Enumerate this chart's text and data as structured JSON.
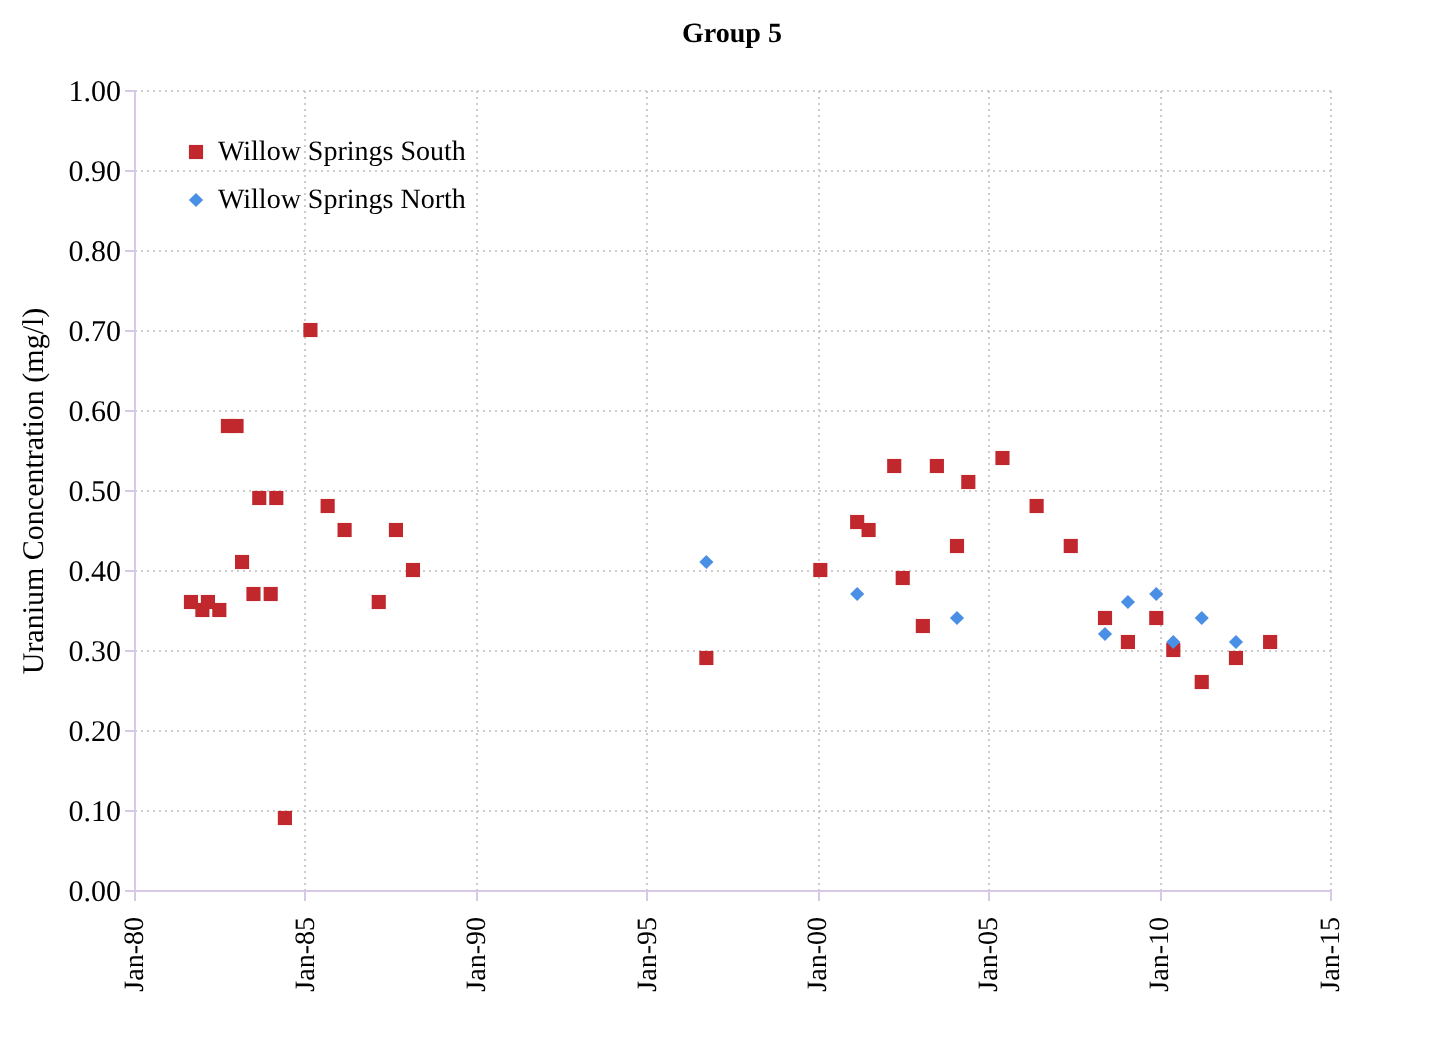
{
  "chart_data": {
    "type": "scatter",
    "title": "Group 5",
    "ylabel": "Uranium Concentration (mg/l)",
    "xlim": [
      "1980-01-01",
      "2015-01-01"
    ],
    "xticks": [
      {
        "value": "1980-01-01",
        "label": "Jan-80"
      },
      {
        "value": "1985-01-01",
        "label": "Jan-85"
      },
      {
        "value": "1990-01-01",
        "label": "Jan-90"
      },
      {
        "value": "1995-01-01",
        "label": "Jan-95"
      },
      {
        "value": "2000-01-01",
        "label": "Jan-00"
      },
      {
        "value": "2005-01-01",
        "label": "Jan-05"
      },
      {
        "value": "2010-01-01",
        "label": "Jan-10"
      },
      {
        "value": "2015-01-01",
        "label": "Jan-15"
      }
    ],
    "ylim": [
      0,
      1
    ],
    "yticks": [
      {
        "value": 0,
        "label": "0.00"
      },
      {
        "value": 0.1,
        "label": "0.10"
      },
      {
        "value": 0.2,
        "label": "0.20"
      },
      {
        "value": 0.3,
        "label": "0.30"
      },
      {
        "value": 0.4,
        "label": "0.40"
      },
      {
        "value": 0.5,
        "label": "0.50"
      },
      {
        "value": 0.6,
        "label": "0.60"
      },
      {
        "value": 0.7,
        "label": "0.70"
      },
      {
        "value": 0.8,
        "label": "0.80"
      },
      {
        "value": 0.9,
        "label": "0.90"
      },
      {
        "value": 1,
        "label": "1.00"
      }
    ],
    "grid": true,
    "legend": "top left",
    "series": [
      {
        "name": "Willow Springs South",
        "color": "#c0282d",
        "marker": "square",
        "x": [
          "1981-09",
          "1982-01",
          "1982-03",
          "1982-07",
          "1982-10",
          "1983-01",
          "1983-03",
          "1983-07",
          "1983-09",
          "1984-01",
          "1984-03",
          "1984-06",
          "1985-03",
          "1985-09",
          "1986-03",
          "1987-03",
          "1987-09",
          "1988-03",
          "1996-10",
          "2000-02",
          "2001-03",
          "2001-07",
          "2002-04",
          "2002-07",
          "2003-02",
          "2003-07",
          "2004-02",
          "2004-06",
          "2005-06",
          "2006-06",
          "2007-06",
          "2008-06",
          "2009-02",
          "2009-12",
          "2010-06",
          "2011-04",
          "2012-04",
          "2013-04"
        ],
        "values": [
          0.36,
          0.35,
          0.36,
          0.35,
          0.58,
          0.58,
          0.41,
          0.37,
          0.49,
          0.37,
          0.49,
          0.09,
          0.7,
          0.48,
          0.45,
          0.36,
          0.45,
          0.4,
          0.29,
          0.4,
          0.46,
          0.45,
          0.53,
          0.39,
          0.33,
          0.53,
          0.43,
          0.51,
          0.54,
          0.48,
          0.43,
          0.34,
          0.31,
          0.34,
          0.3,
          0.26,
          0.29,
          0.31
        ]
      },
      {
        "name": "Willow Springs North",
        "color": "#4a8fe6",
        "marker": "diamond",
        "x": [
          "1996-10",
          "2001-03",
          "2004-02",
          "2008-06",
          "2009-02",
          "2009-12",
          "2010-06",
          "2011-04",
          "2012-04"
        ],
        "values": [
          0.41,
          0.37,
          0.34,
          0.32,
          0.36,
          0.37,
          0.31,
          0.34,
          0.31
        ]
      }
    ]
  }
}
